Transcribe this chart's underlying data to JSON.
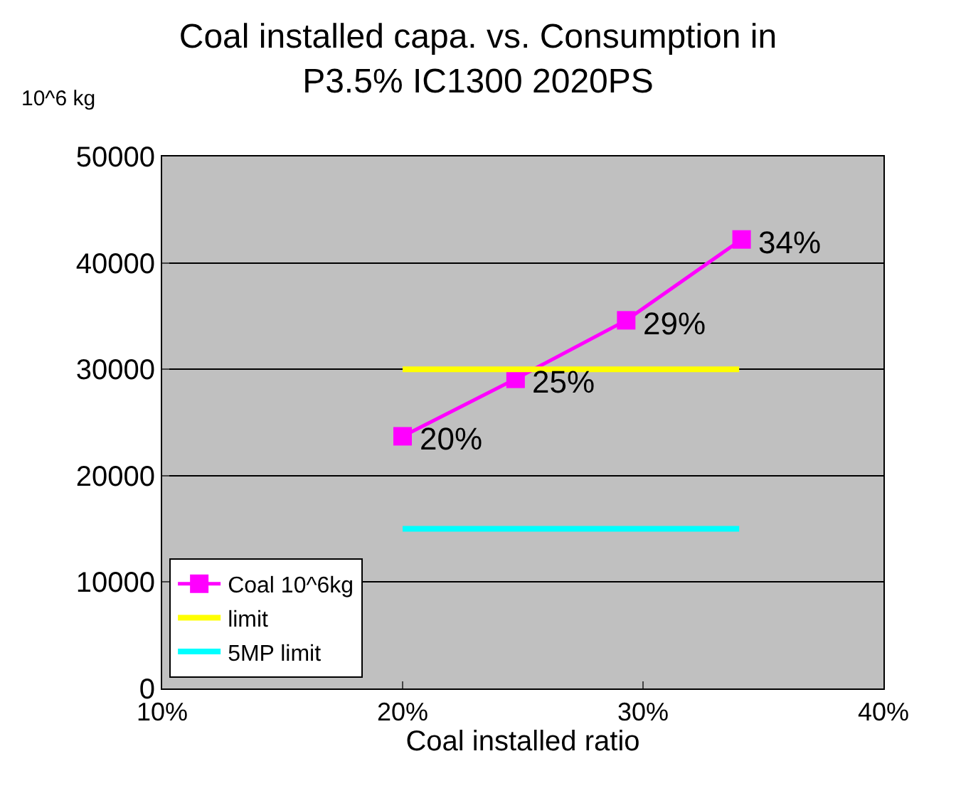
{
  "chart_data": {
    "type": "line",
    "title": "Coal installed capa. vs. Consumption in\nP3.5% IC1300 2020PS",
    "xlabel": "Coal installed ratio",
    "ylabel": "10^6 kg",
    "series": [
      {
        "name": "Coal 10^6kg",
        "color": "#ff00ff",
        "x": [
          20,
          24.7,
          29.3,
          34.1
        ],
        "values": [
          23700,
          29100,
          34600,
          42200
        ],
        "marker": "square"
      },
      {
        "name": "limit",
        "color": "#ffff00",
        "x": [
          20,
          34
        ],
        "values": [
          30000,
          30000
        ],
        "marker": "none"
      },
      {
        "name": "5MP limit",
        "color": "#00ffff",
        "x": [
          20,
          34
        ],
        "values": [
          15000,
          15000
        ],
        "marker": "none"
      }
    ],
    "annotations": [
      {
        "text": "20%",
        "x": 20,
        "y": 23700
      },
      {
        "text": "25%",
        "x": 24.7,
        "y": 29100
      },
      {
        "text": "29%",
        "x": 29.3,
        "y": 34600
      },
      {
        "text": "34%",
        "x": 34.1,
        "y": 42200
      }
    ],
    "xlim": [
      10,
      40
    ],
    "xticks": [
      {
        "value": 10,
        "label": "10%"
      },
      {
        "value": 20,
        "label": "20%"
      },
      {
        "value": 30,
        "label": "30%"
      },
      {
        "value": 40,
        "label": "40%"
      }
    ],
    "ylim": [
      0,
      50000
    ],
    "yticks": [
      0,
      10000,
      20000,
      30000,
      40000,
      50000
    ],
    "grid": "y",
    "legend": "bottom left",
    "line_style": "solid"
  }
}
